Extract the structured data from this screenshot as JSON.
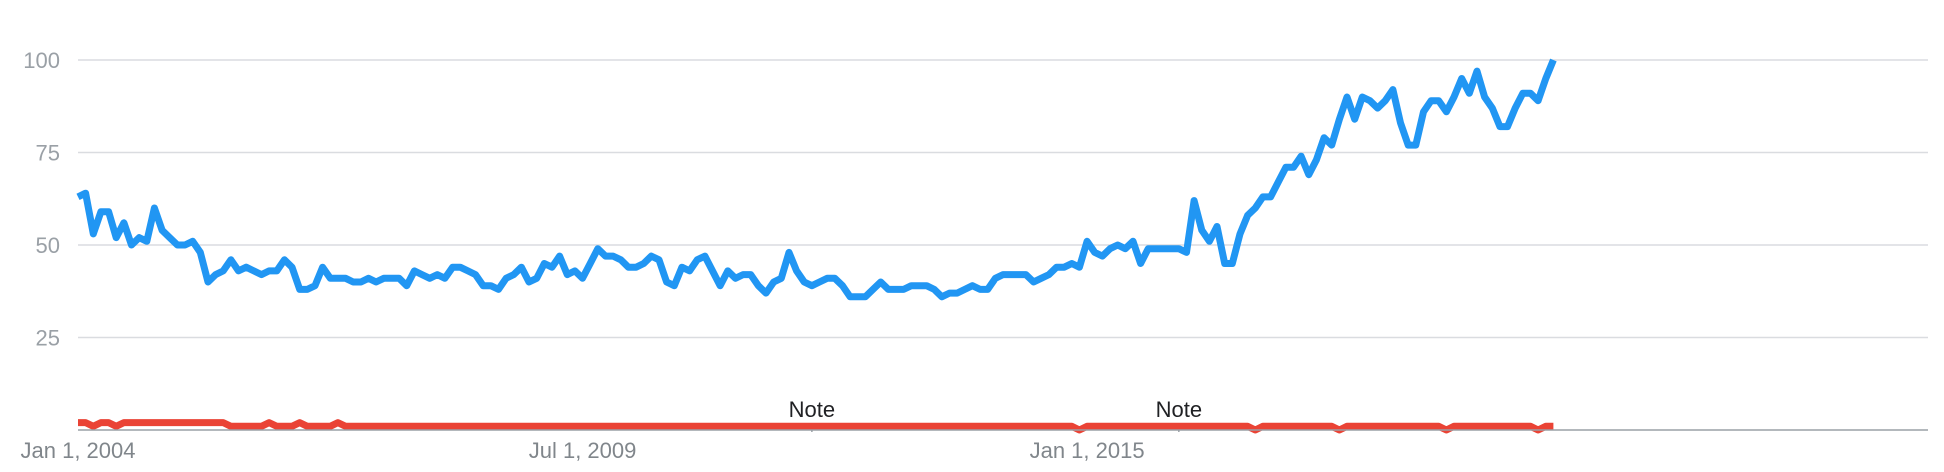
{
  "chart_data": {
    "type": "line",
    "xlabel": "",
    "ylabel": "",
    "ylim": [
      0,
      100
    ],
    "y_ticks": [
      "25",
      "50",
      "75",
      "100"
    ],
    "x_ticks": [
      "Jan 1, 2004",
      "Jul 1, 2009",
      "Jan 1, 2015"
    ],
    "x_range": [
      "2004-01",
      "2024-03"
    ],
    "grid": true,
    "legend": "none",
    "annotations": [
      {
        "text": "Note",
        "x": "2012-01"
      },
      {
        "text": "Note",
        "x": "2016-01"
      }
    ],
    "series": [
      {
        "color": "#2196f3",
        "points": [
          [
            "2004-01",
            63
          ],
          [
            "2004-02",
            64
          ],
          [
            "2004-03",
            53
          ],
          [
            "2004-04",
            59
          ],
          [
            "2004-05",
            59
          ],
          [
            "2004-06",
            52
          ],
          [
            "2004-07",
            56
          ],
          [
            "2004-08",
            50
          ],
          [
            "2004-09",
            52
          ],
          [
            "2004-10",
            51
          ],
          [
            "2004-11",
            60
          ],
          [
            "2004-12",
            54
          ],
          [
            "2005-01",
            52
          ],
          [
            "2005-02",
            50
          ],
          [
            "2005-03",
            50
          ],
          [
            "2005-04",
            51
          ],
          [
            "2005-05",
            48
          ],
          [
            "2005-06",
            40
          ],
          [
            "2005-07",
            42
          ],
          [
            "2005-08",
            43
          ],
          [
            "2005-09",
            46
          ],
          [
            "2005-10",
            43
          ],
          [
            "2005-11",
            44
          ],
          [
            "2005-12",
            43
          ],
          [
            "2006-01",
            42
          ],
          [
            "2006-02",
            43
          ],
          [
            "2006-03",
            43
          ],
          [
            "2006-04",
            46
          ],
          [
            "2006-05",
            44
          ],
          [
            "2006-06",
            38
          ],
          [
            "2006-07",
            38
          ],
          [
            "2006-08",
            39
          ],
          [
            "2006-09",
            44
          ],
          [
            "2006-10",
            41
          ],
          [
            "2006-11",
            41
          ],
          [
            "2006-12",
            41
          ],
          [
            "2007-01",
            40
          ],
          [
            "2007-02",
            40
          ],
          [
            "2007-03",
            41
          ],
          [
            "2007-04",
            40
          ],
          [
            "2007-05",
            41
          ],
          [
            "2007-06",
            41
          ],
          [
            "2007-07",
            41
          ],
          [
            "2007-08",
            39
          ],
          [
            "2007-09",
            43
          ],
          [
            "2007-10",
            42
          ],
          [
            "2007-11",
            41
          ],
          [
            "2007-12",
            42
          ],
          [
            "2008-01",
            41
          ],
          [
            "2008-02",
            44
          ],
          [
            "2008-03",
            44
          ],
          [
            "2008-04",
            43
          ],
          [
            "2008-05",
            42
          ],
          [
            "2008-06",
            39
          ],
          [
            "2008-07",
            39
          ],
          [
            "2008-08",
            38
          ],
          [
            "2008-09",
            41
          ],
          [
            "2008-10",
            42
          ],
          [
            "2008-11",
            44
          ],
          [
            "2008-12",
            40
          ],
          [
            "2009-01",
            41
          ],
          [
            "2009-02",
            45
          ],
          [
            "2009-03",
            44
          ],
          [
            "2009-04",
            47
          ],
          [
            "2009-05",
            42
          ],
          [
            "2009-06",
            43
          ],
          [
            "2009-07",
            41
          ],
          [
            "2009-08",
            45
          ],
          [
            "2009-09",
            49
          ],
          [
            "2009-10",
            47
          ],
          [
            "2009-11",
            47
          ],
          [
            "2009-12",
            46
          ],
          [
            "2010-01",
            44
          ],
          [
            "2010-02",
            44
          ],
          [
            "2010-03",
            45
          ],
          [
            "2010-04",
            47
          ],
          [
            "2010-05",
            46
          ],
          [
            "2010-06",
            40
          ],
          [
            "2010-07",
            39
          ],
          [
            "2010-08",
            44
          ],
          [
            "2010-09",
            43
          ],
          [
            "2010-10",
            46
          ],
          [
            "2010-11",
            47
          ],
          [
            "2010-12",
            43
          ],
          [
            "2011-01",
            39
          ],
          [
            "2011-02",
            43
          ],
          [
            "2011-03",
            41
          ],
          [
            "2011-04",
            42
          ],
          [
            "2011-05",
            42
          ],
          [
            "2011-06",
            39
          ],
          [
            "2011-07",
            37
          ],
          [
            "2011-08",
            40
          ],
          [
            "2011-09",
            41
          ],
          [
            "2011-10",
            48
          ],
          [
            "2011-11",
            43
          ],
          [
            "2011-12",
            40
          ],
          [
            "2012-01",
            39
          ],
          [
            "2012-02",
            40
          ],
          [
            "2012-03",
            41
          ],
          [
            "2012-04",
            41
          ],
          [
            "2012-05",
            39
          ],
          [
            "2012-06",
            36
          ],
          [
            "2012-07",
            36
          ],
          [
            "2012-08",
            36
          ],
          [
            "2012-09",
            38
          ],
          [
            "2012-10",
            40
          ],
          [
            "2012-11",
            38
          ],
          [
            "2012-12",
            38
          ],
          [
            "2013-01",
            38
          ],
          [
            "2013-02",
            39
          ],
          [
            "2013-03",
            39
          ],
          [
            "2013-04",
            39
          ],
          [
            "2013-05",
            38
          ],
          [
            "2013-06",
            36
          ],
          [
            "2013-07",
            37
          ],
          [
            "2013-08",
            37
          ],
          [
            "2013-09",
            38
          ],
          [
            "2013-10",
            39
          ],
          [
            "2013-11",
            38
          ],
          [
            "2013-12",
            38
          ],
          [
            "2014-01",
            41
          ],
          [
            "2014-02",
            42
          ],
          [
            "2014-03",
            42
          ],
          [
            "2014-04",
            42
          ],
          [
            "2014-05",
            42
          ],
          [
            "2014-06",
            40
          ],
          [
            "2014-07",
            41
          ],
          [
            "2014-08",
            42
          ],
          [
            "2014-09",
            44
          ],
          [
            "2014-10",
            44
          ],
          [
            "2014-11",
            45
          ],
          [
            "2014-12",
            44
          ],
          [
            "2015-01",
            51
          ],
          [
            "2015-02",
            48
          ],
          [
            "2015-03",
            47
          ],
          [
            "2015-04",
            49
          ],
          [
            "2015-05",
            50
          ],
          [
            "2015-06",
            49
          ],
          [
            "2015-07",
            51
          ],
          [
            "2015-08",
            45
          ],
          [
            "2015-09",
            49
          ],
          [
            "2015-10",
            49
          ],
          [
            "2015-11",
            49
          ],
          [
            "2015-12",
            49
          ],
          [
            "2016-01",
            49
          ],
          [
            "2016-02",
            48
          ],
          [
            "2016-03",
            62
          ],
          [
            "2016-04",
            54
          ],
          [
            "2016-05",
            51
          ],
          [
            "2016-06",
            55
          ],
          [
            "2016-07",
            45
          ],
          [
            "2016-08",
            45
          ],
          [
            "2016-09",
            53
          ],
          [
            "2016-10",
            58
          ],
          [
            "2016-11",
            60
          ],
          [
            "2016-12",
            63
          ],
          [
            "2017-01",
            63
          ],
          [
            "2017-02",
            67
          ],
          [
            "2017-03",
            71
          ],
          [
            "2017-04",
            71
          ],
          [
            "2017-05",
            74
          ],
          [
            "2017-06",
            69
          ],
          [
            "2017-07",
            73
          ],
          [
            "2017-08",
            79
          ],
          [
            "2017-09",
            77
          ],
          [
            "2017-10",
            84
          ],
          [
            "2017-11",
            90
          ],
          [
            "2017-12",
            84
          ],
          [
            "2018-01",
            90
          ],
          [
            "2018-02",
            89
          ],
          [
            "2018-03",
            87
          ],
          [
            "2018-04",
            89
          ],
          [
            "2018-05",
            92
          ],
          [
            "2018-06",
            83
          ],
          [
            "2018-07",
            77
          ],
          [
            "2018-08",
            77
          ],
          [
            "2018-09",
            86
          ],
          [
            "2018-10",
            89
          ],
          [
            "2018-11",
            89
          ],
          [
            "2018-12",
            86
          ],
          [
            "2019-01",
            90
          ],
          [
            "2019-02",
            95
          ],
          [
            "2019-03",
            91
          ],
          [
            "2019-04",
            97
          ],
          [
            "2019-05",
            90
          ],
          [
            "2019-06",
            87
          ],
          [
            "2019-07",
            82
          ],
          [
            "2019-08",
            82
          ],
          [
            "2019-09",
            87
          ],
          [
            "2019-10",
            91
          ],
          [
            "2019-11",
            91
          ],
          [
            "2019-12",
            89
          ],
          [
            "2020-01",
            95
          ],
          [
            "2020-02",
            100
          ]
        ]
      },
      {
        "color": "#ea4335",
        "points": [
          [
            "2004-01",
            2
          ],
          [
            "2004-02",
            2
          ],
          [
            "2004-03",
            1
          ],
          [
            "2004-04",
            2
          ],
          [
            "2004-05",
            2
          ],
          [
            "2004-06",
            1
          ],
          [
            "2004-07",
            2
          ],
          [
            "2004-08",
            2
          ],
          [
            "2004-09",
            2
          ],
          [
            "2004-10",
            2
          ],
          [
            "2004-11",
            2
          ],
          [
            "2004-12",
            2
          ],
          [
            "2005-01",
            2
          ],
          [
            "2005-02",
            2
          ],
          [
            "2005-03",
            2
          ],
          [
            "2005-04",
            2
          ],
          [
            "2005-05",
            2
          ],
          [
            "2005-06",
            2
          ],
          [
            "2005-07",
            2
          ],
          [
            "2005-08",
            2
          ],
          [
            "2005-09",
            1
          ],
          [
            "2005-10",
            1
          ],
          [
            "2005-11",
            1
          ],
          [
            "2005-12",
            1
          ],
          [
            "2006-01",
            1
          ],
          [
            "2006-02",
            2
          ],
          [
            "2006-03",
            1
          ],
          [
            "2006-04",
            1
          ],
          [
            "2006-05",
            1
          ],
          [
            "2006-06",
            2
          ],
          [
            "2006-07",
            1
          ],
          [
            "2006-08",
            1
          ],
          [
            "2006-09",
            1
          ],
          [
            "2006-10",
            1
          ],
          [
            "2006-11",
            2
          ],
          [
            "2006-12",
            1
          ],
          [
            "2007-01",
            1
          ],
          [
            "2007-06",
            1
          ],
          [
            "2008-01",
            1
          ],
          [
            "2009-01",
            1
          ],
          [
            "2010-01",
            1
          ],
          [
            "2011-01",
            1
          ],
          [
            "2012-01",
            1
          ],
          [
            "2013-01",
            1
          ],
          [
            "2014-01",
            1
          ],
          [
            "2014-10",
            1
          ],
          [
            "2014-11",
            1
          ],
          [
            "2014-12",
            0
          ],
          [
            "2015-01",
            1
          ],
          [
            "2015-06",
            1
          ],
          [
            "2016-01",
            1
          ],
          [
            "2016-06",
            1
          ],
          [
            "2016-10",
            1
          ],
          [
            "2016-11",
            0
          ],
          [
            "2016-12",
            1
          ],
          [
            "2017-06",
            1
          ],
          [
            "2017-09",
            1
          ],
          [
            "2017-10",
            0
          ],
          [
            "2017-11",
            1
          ],
          [
            "2018-06",
            1
          ],
          [
            "2018-11",
            1
          ],
          [
            "2018-12",
            0
          ],
          [
            "2019-01",
            1
          ],
          [
            "2019-06",
            1
          ],
          [
            "2019-10",
            1
          ],
          [
            "2019-11",
            1
          ],
          [
            "2019-12",
            0
          ],
          [
            "2020-01",
            1
          ],
          [
            "2020-02",
            1
          ]
        ]
      }
    ]
  }
}
